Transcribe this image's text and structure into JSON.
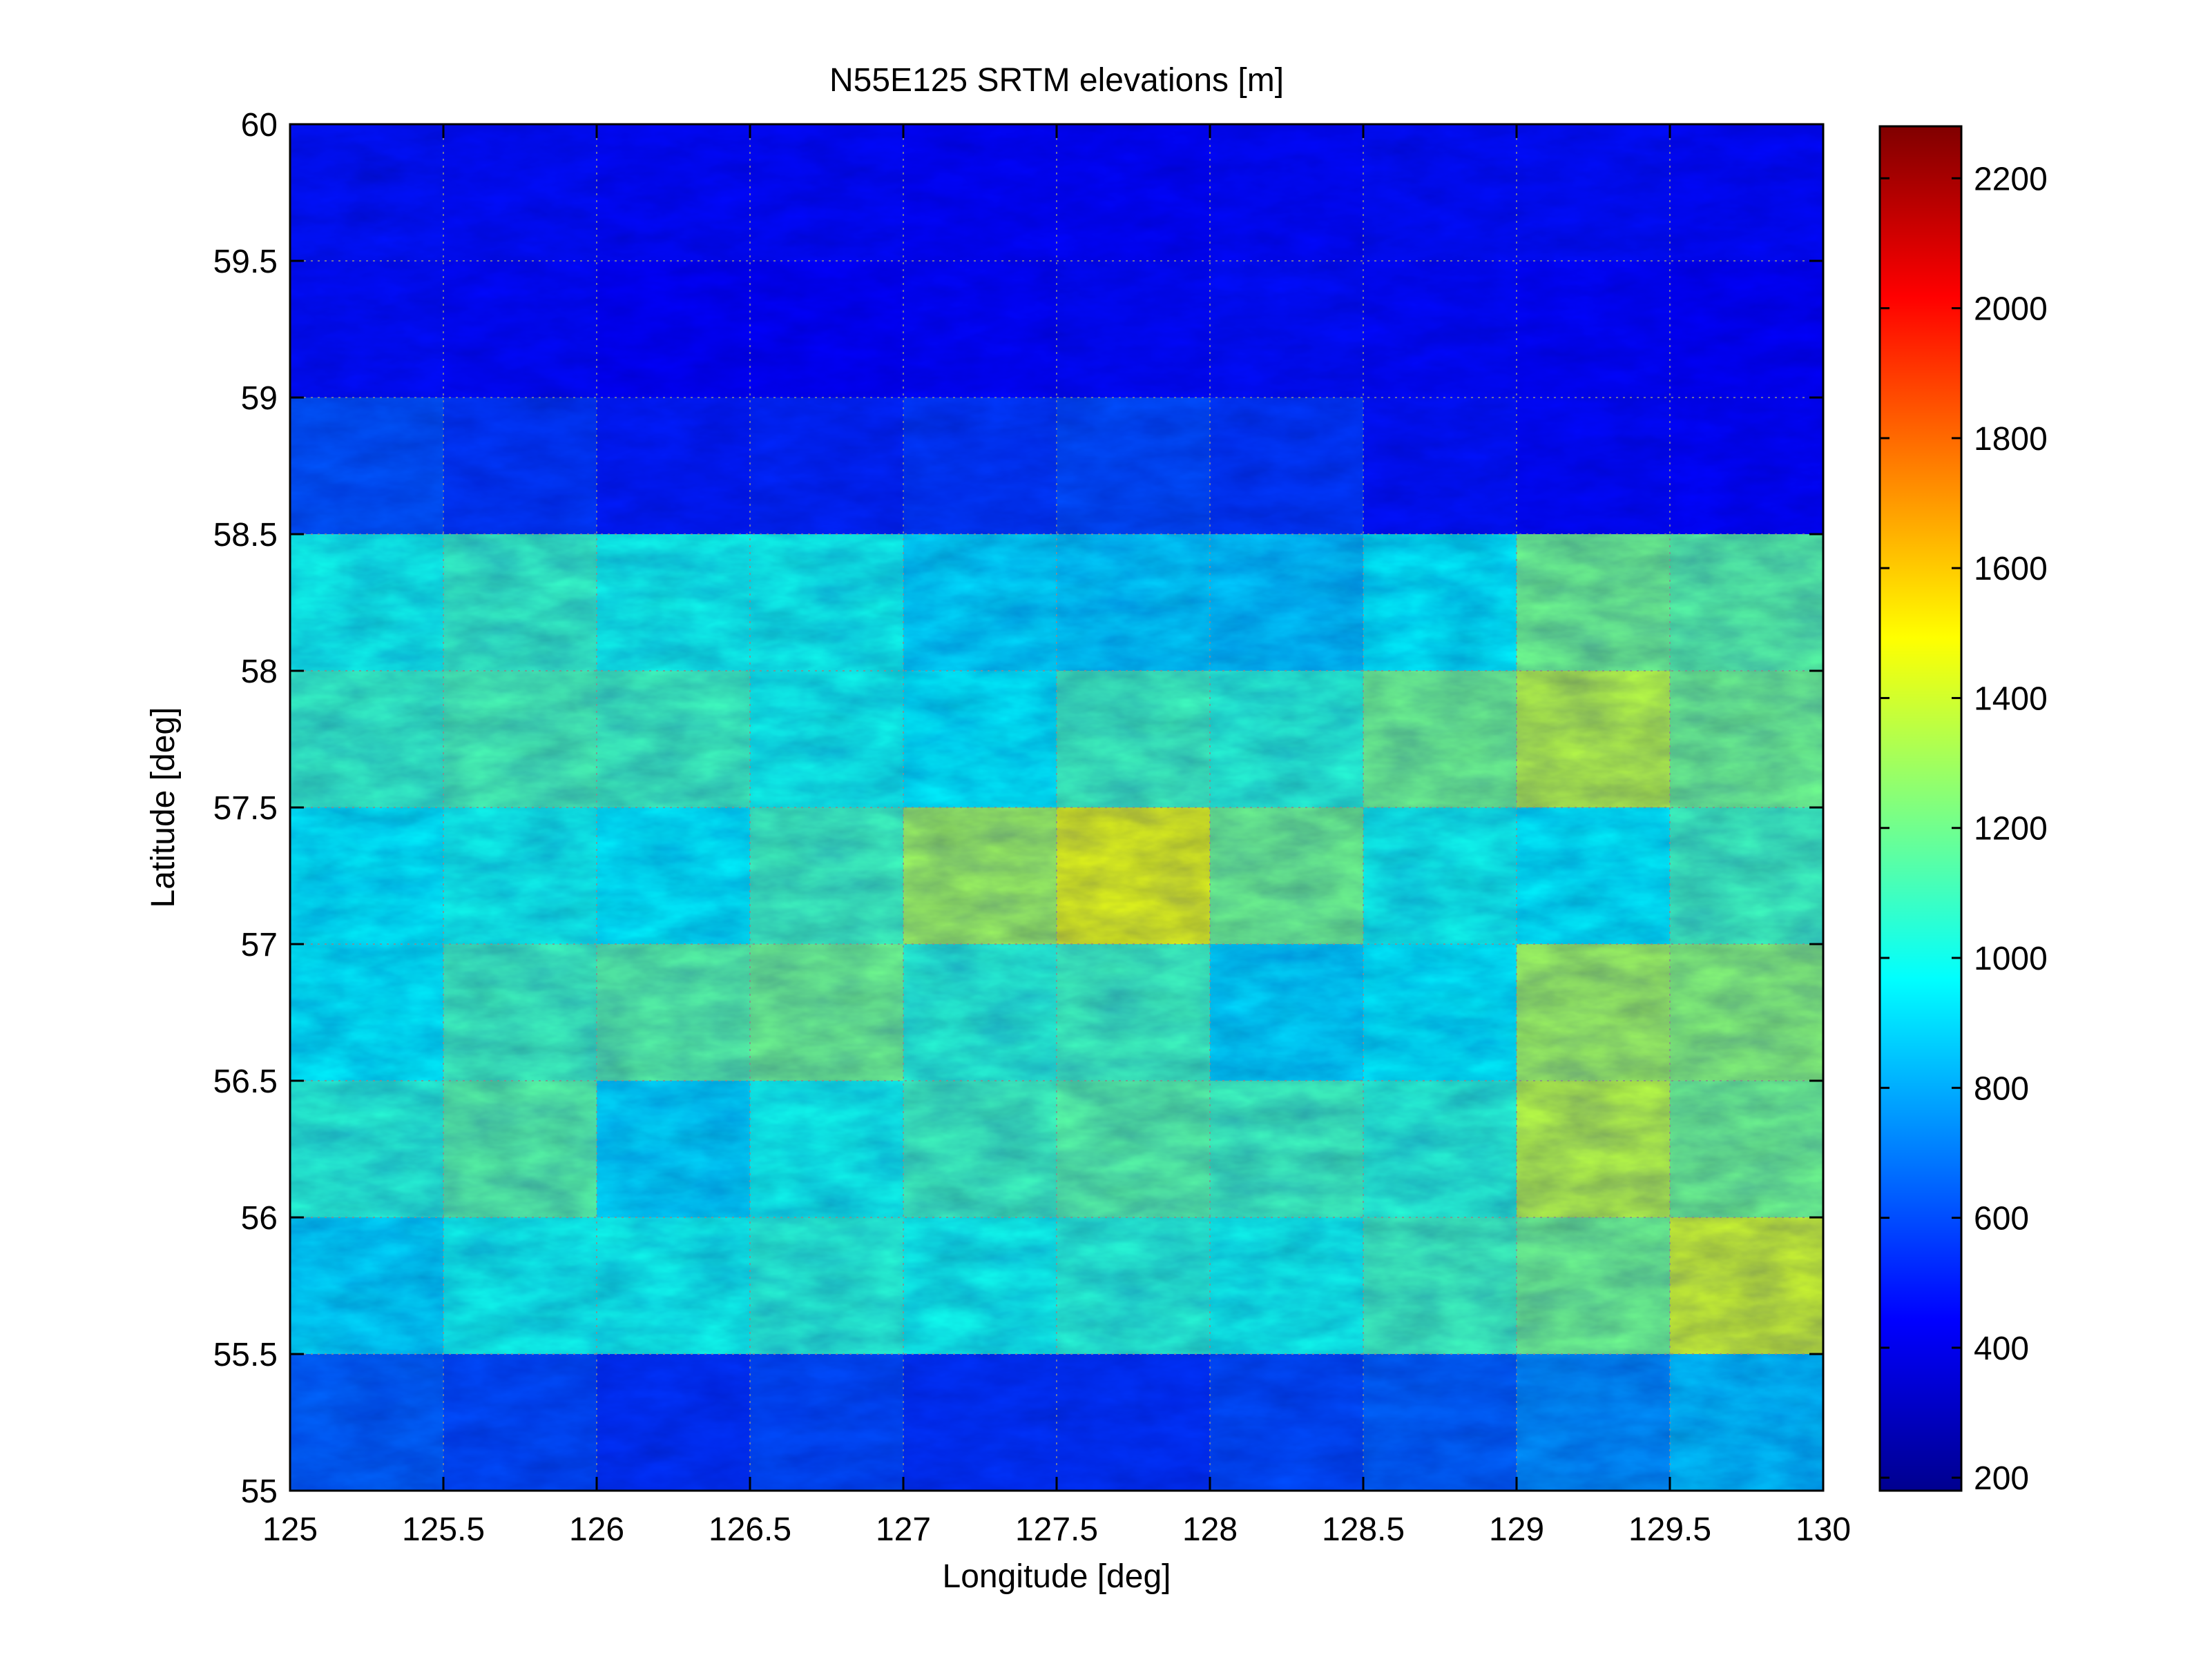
{
  "chart_data": {
    "type": "heatmap",
    "title": "N55E125 SRTM elevations [m]",
    "xlabel": "Longitude [deg]",
    "ylabel": "Latitude [deg]",
    "xlim": [
      125,
      130
    ],
    "ylim": [
      55,
      60
    ],
    "x_ticks": [
      "125",
      "125.5",
      "126",
      "126.5",
      "127",
      "127.5",
      "128",
      "128.5",
      "129",
      "129.5",
      "130"
    ],
    "y_ticks": [
      "55",
      "55.5",
      "56",
      "56.5",
      "57",
      "57.5",
      "58",
      "58.5",
      "59",
      "59.5",
      "60"
    ],
    "grid": true,
    "colormap": "jet",
    "colorbar": {
      "range": [
        180,
        2280
      ],
      "ticks": [
        "200",
        "400",
        "600",
        "800",
        "1000",
        "1200",
        "1400",
        "1600",
        "1800",
        "2000",
        "2200"
      ],
      "position": "right"
    },
    "approx_elevation_grid": {
      "rows_lat_centers": [
        59.75,
        59.25,
        58.75,
        58.25,
        57.75,
        57.25,
        56.75,
        56.25,
        55.75,
        55.25
      ],
      "cols_lon_centers": [
        125.25,
        125.75,
        126.25,
        126.75,
        127.25,
        127.75,
        128.25,
        128.75,
        129.25,
        129.75
      ],
      "values": [
        [
          480,
          470,
          460,
          460,
          450,
          450,
          460,
          470,
          470,
          460
        ],
        [
          470,
          460,
          440,
          440,
          450,
          460,
          470,
          460,
          450,
          440
        ],
        [
          620,
          560,
          500,
          520,
          560,
          600,
          560,
          480,
          460,
          450
        ],
        [
          1000,
          1080,
          1000,
          1000,
          900,
          880,
          860,
          950,
          1200,
          1150
        ],
        [
          1080,
          1120,
          1100,
          1000,
          950,
          1100,
          1050,
          1200,
          1350,
          1200
        ],
        [
          950,
          1000,
          950,
          1100,
          1300,
          1450,
          1200,
          1000,
          950,
          1100
        ],
        [
          950,
          1100,
          1150,
          1200,
          1050,
          1100,
          900,
          950,
          1300,
          1250
        ],
        [
          1050,
          1150,
          900,
          1000,
          1100,
          1150,
          1100,
          1050,
          1350,
          1200
        ],
        [
          900,
          1000,
          1000,
          1050,
          1000,
          1050,
          1000,
          1100,
          1200,
          1400
        ],
        [
          650,
          600,
          550,
          600,
          550,
          550,
          600,
          650,
          750,
          850
        ]
      ]
    },
    "colors": {
      "low": "#00008f",
      "mid": "#00ffff",
      "high": "#800000",
      "grid": "#8c8c8c"
    }
  }
}
